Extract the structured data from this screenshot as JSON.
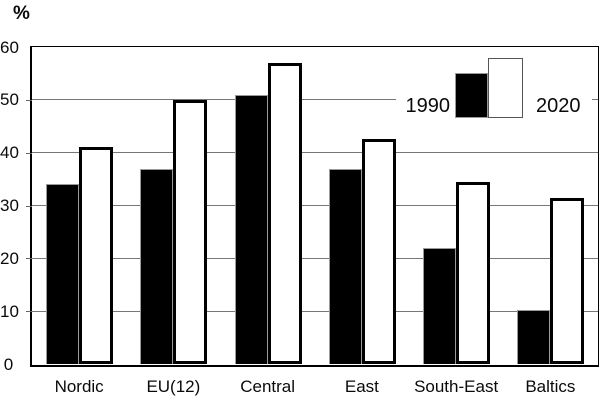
{
  "chart_data": {
    "type": "bar",
    "title": "",
    "ylabel": "%",
    "xlabel": "",
    "ylim": [
      0,
      60
    ],
    "yticks": [
      0,
      10,
      20,
      30,
      40,
      50,
      60
    ],
    "grid": true,
    "legend_position": "inside-top-right",
    "categories": [
      "Nordic",
      "EU(12)",
      "Central",
      "East",
      "South-East",
      "Baltics"
    ],
    "series": [
      {
        "name": "1990",
        "color": "#000000",
        "values": [
          34,
          37,
          51,
          37,
          22,
          10.3
        ]
      },
      {
        "name": "2020",
        "color": "#ffffff",
        "border_color": "#000000",
        "values": [
          41,
          50,
          57,
          42.5,
          34.5,
          31.5
        ]
      }
    ],
    "colors": {
      "background": "#ffffff",
      "gridline": "#777777",
      "axis": "#000000",
      "text": "#0a0a0a"
    }
  }
}
